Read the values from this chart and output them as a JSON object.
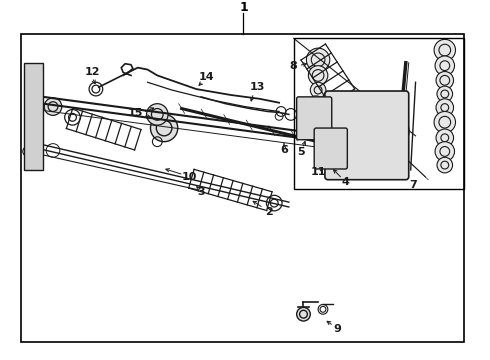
{
  "bg_color": "#ffffff",
  "border_color": "#000000",
  "line_color": "#1a1a1a",
  "fig_width": 4.9,
  "fig_height": 3.6,
  "dpi": 100
}
